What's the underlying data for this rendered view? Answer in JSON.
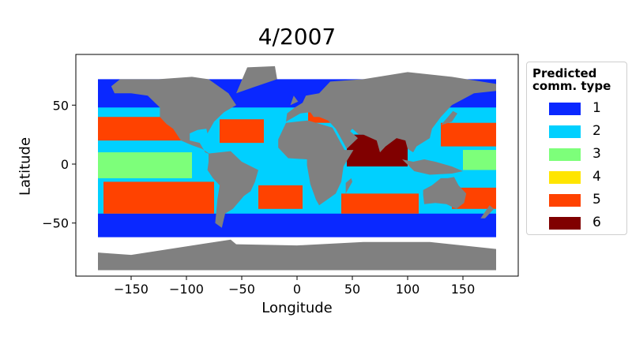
{
  "title": "4/2007",
  "xlabel": "Longitude",
  "ylabel": "Latitude",
  "x_ticks": [
    "−150",
    "−100",
    "−50",
    "0",
    "50",
    "100",
    "150"
  ],
  "y_ticks": [
    "50",
    "0",
    "−50"
  ],
  "legend": {
    "title": "Predicted\ncomm. type",
    "items": [
      {
        "label": "1",
        "color": "#0a28ff"
      },
      {
        "label": "2",
        "color": "#00d0ff"
      },
      {
        "label": "3",
        "color": "#7dff7a"
      },
      {
        "label": "4",
        "color": "#ffe500"
      },
      {
        "label": "5",
        "color": "#ff4200"
      },
      {
        "label": "6",
        "color": "#800000"
      }
    ]
  },
  "chart_data": {
    "type": "scatter",
    "xlim": [
      -200,
      200
    ],
    "ylim": [
      -95,
      93
    ],
    "x_tick_values": [
      -150,
      -100,
      -50,
      0,
      50,
      100,
      150
    ],
    "y_tick_values": [
      50,
      0,
      -50
    ],
    "grid": false,
    "legend_position": "right-outside",
    "land_color": "#808080"
  }
}
